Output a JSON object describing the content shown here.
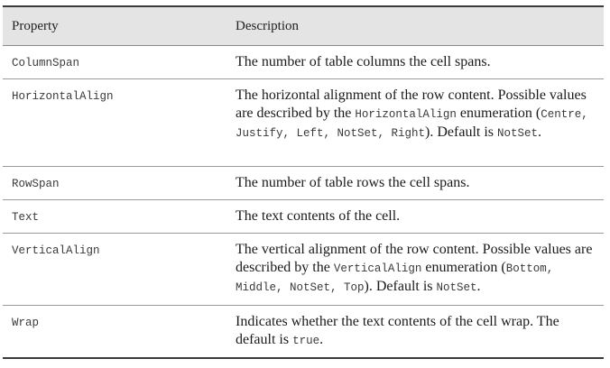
{
  "table": {
    "headers": {
      "property": "Property",
      "description": "Description"
    },
    "rows": [
      {
        "property": "ColumnSpan",
        "description": [
          {
            "t": "text",
            "v": "The number of table columns the cell spans."
          }
        ]
      },
      {
        "property": "HorizontalAlign",
        "description": [
          {
            "t": "text",
            "v": "The horizontal alignment of the row content. Possible values are described by the "
          },
          {
            "t": "code",
            "v": "HorizontalAlign"
          },
          {
            "t": "text",
            "v": " enumeration ("
          },
          {
            "t": "code",
            "v": "Centre, Justify, Left, NotSet, Right"
          },
          {
            "t": "text",
            "v": "). Default is "
          },
          {
            "t": "code",
            "v": "NotSet"
          },
          {
            "t": "text",
            "v": "."
          }
        ]
      },
      {
        "property": "RowSpan",
        "description": [
          {
            "t": "text",
            "v": "The number of table rows the cell spans."
          }
        ]
      },
      {
        "property": "Text",
        "description": [
          {
            "t": "text",
            "v": "The text contents of the cell."
          }
        ]
      },
      {
        "property": "VerticalAlign",
        "description": [
          {
            "t": "text",
            "v": "The vertical alignment of the row content. Possible values are described by the "
          },
          {
            "t": "code",
            "v": "VerticalAlign"
          },
          {
            "t": "text",
            "v": " enumeration ("
          },
          {
            "t": "code",
            "v": "Bottom, Middle, NotSet, Top"
          },
          {
            "t": "text",
            "v": "). Default is "
          },
          {
            "t": "code",
            "v": "NotSet"
          },
          {
            "t": "text",
            "v": "."
          }
        ]
      },
      {
        "property": "Wrap",
        "description": [
          {
            "t": "text",
            "v": "Indicates whether the text contents of the cell wrap. The default is "
          },
          {
            "t": "code",
            "v": "true"
          },
          {
            "t": "text",
            "v": "."
          }
        ]
      }
    ]
  }
}
